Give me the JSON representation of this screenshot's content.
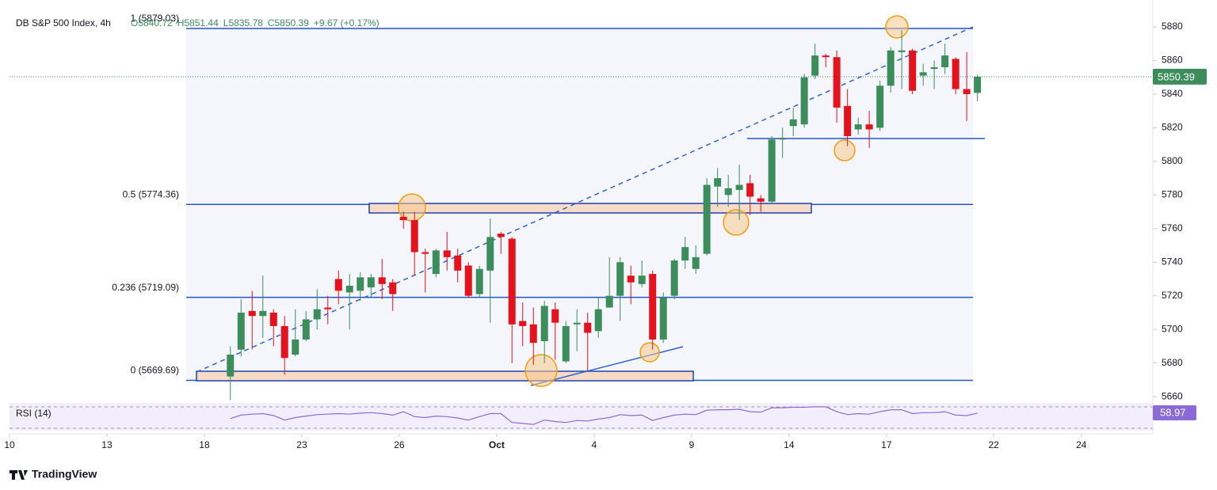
{
  "chart_data": {
    "type": "candlestick",
    "title": "DB S&P 500 Index, 4h",
    "header": [
      "O5840.72",
      "H5851.44",
      "L5835.78",
      "C5850.39",
      "+9.67 (+0.17%)"
    ],
    "up_color": "#3d8c5c",
    "down_color": "#e3121c",
    "x": [
      6.8,
      7.13,
      7.47,
      7.8,
      8.13,
      8.47,
      8.8,
      9.13,
      9.47,
      9.8,
      10.13,
      10.47,
      10.8,
      11.13,
      11.47,
      11.8,
      12.13,
      12.47,
      12.8,
      13.13,
      13.47,
      13.8,
      14.13,
      14.47,
      14.8,
      15.13,
      15.47,
      15.8,
      16.13,
      16.47,
      16.8,
      17.13,
      17.47,
      17.8,
      18.13,
      18.47,
      18.8,
      19.13,
      19.47,
      19.8,
      20.13,
      20.47,
      20.8,
      21.13,
      21.47,
      21.8,
      22.13,
      22.47,
      22.8,
      23.13,
      23.47,
      23.8,
      24.13,
      24.47,
      24.8,
      25.13,
      25.47,
      25.8,
      26.13,
      26.47,
      26.8,
      27.13,
      27.47,
      27.8,
      28.13,
      28.47,
      28.8,
      29.13,
      29.47,
      29.8
    ],
    "open": [
      5672,
      5688,
      5711,
      5708,
      5710,
      5702,
      5685,
      5694,
      5706,
      5713,
      5730,
      5722,
      5723,
      5725,
      5731,
      5728,
      5767,
      5765,
      5746,
      5733,
      5747,
      5744,
      5738,
      5721,
      5735,
      5757,
      5754,
      5705,
      5703,
      5693,
      5712,
      5681,
      5703,
      5704,
      5699,
      5713,
      5720,
      5732,
      5727,
      5733,
      5694,
      5720,
      5741,
      5736,
      5745,
      5785,
      5780,
      5783,
      5787,
      5778,
      5776,
      5813,
      5821,
      5822,
      5851,
      5863,
      5862,
      5833,
      5819,
      5822,
      5820,
      5845,
      5865,
      5866,
      5851,
      5855,
      5856,
      5861,
      5843,
      5840.72
    ],
    "high": [
      5690,
      5718,
      5723,
      5732,
      5712,
      5708,
      5712,
      5711,
      5724,
      5720,
      5735,
      5733,
      5734,
      5733,
      5742,
      5730,
      5770,
      5770,
      5748,
      5748,
      5758,
      5748,
      5740,
      5738,
      5766,
      5758,
      5755,
      5716,
      5713,
      5717,
      5716,
      5705,
      5712,
      5710,
      5719,
      5743,
      5743,
      5738,
      5741,
      5735,
      5722,
      5742,
      5755,
      5750,
      5790,
      5796,
      5792,
      5798,
      5792,
      5780,
      5815,
      5820,
      5832,
      5852,
      5870,
      5864,
      5866,
      5843,
      5826,
      5830,
      5848,
      5868,
      5878,
      5867,
      5858,
      5860,
      5870,
      5862,
      5865,
      5851.44
    ],
    "low": [
      5658,
      5684,
      5688,
      5695,
      5690,
      5673,
      5684,
      5693,
      5700,
      5703,
      5715,
      5700,
      5717,
      5719,
      5718,
      5711,
      5760,
      5732,
      5722,
      5731,
      5735,
      5728,
      5719,
      5719,
      5704,
      5745,
      5680,
      5690,
      5679,
      5680,
      5682,
      5680,
      5687,
      5675,
      5695,
      5713,
      5705,
      5715,
      5725,
      5688,
      5692,
      5718,
      5736,
      5733,
      5744,
      5773,
      5773,
      5765,
      5768,
      5770,
      5775,
      5802,
      5815,
      5820,
      5849,
      5856,
      5823,
      5809,
      5816,
      5808,
      5818,
      5841,
      5843,
      5840,
      5845,
      5843,
      5852,
      5840,
      5824,
      5835.78
    ],
    "close": [
      5685,
      5710,
      5708,
      5711,
      5702,
      5683,
      5694,
      5706,
      5712,
      5712,
      5723,
      5726,
      5731,
      5731,
      5727,
      5721,
      5765,
      5746,
      5745,
      5747,
      5743,
      5735,
      5720,
      5736,
      5755,
      5755,
      5703,
      5702,
      5692,
      5714,
      5704,
      5702,
      5704,
      5698,
      5712,
      5720,
      5740,
      5728,
      5732,
      5694,
      5719,
      5741,
      5749,
      5743,
      5786,
      5790,
      5784,
      5786,
      5779,
      5776,
      5813,
      5814,
      5825,
      5850,
      5863,
      5862,
      5832,
      5815,
      5822,
      5819,
      5845,
      5866,
      5866,
      5842,
      5853,
      5856,
      5863,
      5843,
      5840,
      5850.39
    ],
    "xlim": [
      0,
      35.2
    ],
    "xticks": [
      {
        "value": 0,
        "label": "10"
      },
      {
        "value": 3,
        "label": "13"
      },
      {
        "value": 6,
        "label": "18"
      },
      {
        "value": 9,
        "label": "23"
      },
      {
        "value": 12,
        "label": "26"
      },
      {
        "value": 15,
        "label": "Oct"
      },
      {
        "value": 18,
        "label": "4"
      },
      {
        "value": 21,
        "label": "9"
      },
      {
        "value": 24,
        "label": "14"
      },
      {
        "value": 27,
        "label": "17"
      },
      {
        "value": 30.3,
        "label": "22"
      },
      {
        "value": 33,
        "label": "24"
      }
    ],
    "ylim": [
      5655.8,
      5891.3
    ],
    "yticks": [
      5660,
      5680,
      5700,
      5720,
      5740,
      5760,
      5780,
      5800,
      5820,
      5840,
      5860,
      5880
    ],
    "last_price": 5850.39,
    "fib_levels": [
      {
        "value": 5879.03,
        "label": "1 (5879.03)"
      },
      {
        "value": 5774.36,
        "label": "0.5 (5774.36)"
      },
      {
        "value": 5719.09,
        "label": "0.236 (5719.09)"
      },
      {
        "value": 5669.69,
        "label": "0 (5669.69)"
      }
    ],
    "rsi": {
      "label": "RSI (14)",
      "color": "#8a6bd6",
      "ylim": [
        25,
        75
      ],
      "values": [
        48,
        55,
        57,
        58,
        54,
        45,
        50,
        53,
        56,
        57,
        58,
        57,
        59,
        60,
        58,
        55,
        62,
        52,
        50,
        53,
        52,
        49,
        45,
        52,
        58,
        58,
        40,
        38,
        36,
        45,
        42,
        40,
        44,
        43,
        47,
        50,
        56,
        54,
        55,
        44,
        50,
        55,
        57,
        56,
        65,
        66,
        66,
        67,
        62,
        61,
        70,
        70,
        71,
        71,
        72,
        72,
        62,
        56,
        58,
        57,
        62,
        66,
        66,
        58,
        60,
        60,
        62,
        55,
        54,
        58.97
      ],
      "last": 58.97
    },
    "brand": "TradingView"
  }
}
